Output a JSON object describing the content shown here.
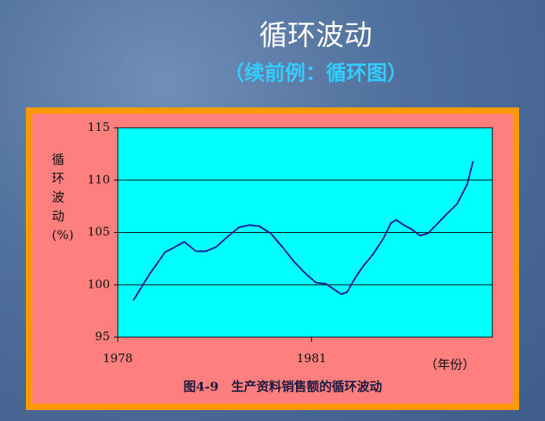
{
  "slide": {
    "title": "循环波动",
    "subtitle": "（续前例：循环图）"
  },
  "chart_data": {
    "type": "line",
    "y_label": "循环波动(%)",
    "x_label": "（年份）",
    "caption": "图4-9　生产资料销售额的循环波动",
    "xlim": [
      1978,
      1983.8
    ],
    "xticks": [
      1978,
      1981
    ],
    "ylim": [
      95,
      115
    ],
    "yticks": [
      95,
      100,
      105,
      110,
      115
    ],
    "grid": true,
    "series": [
      {
        "color": "#1a1a99",
        "x": [
          1978.24,
          1978.49,
          1978.73,
          1979.03,
          1979.21,
          1979.36,
          1979.52,
          1979.72,
          1979.88,
          1980.04,
          1980.19,
          1980.37,
          1980.55,
          1980.73,
          1980.92,
          1981.07,
          1981.22,
          1981.34,
          1981.46,
          1981.55,
          1981.67,
          1981.79,
          1981.95,
          1982.11,
          1982.23,
          1982.31,
          1982.43,
          1982.55,
          1982.68,
          1982.8,
          1982.96,
          1983.1,
          1983.25,
          1983.41,
          1983.5
        ],
        "values": [
          98.5,
          101.0,
          103.1,
          104.1,
          103.2,
          103.2,
          103.6,
          104.7,
          105.5,
          105.7,
          105.6,
          104.9,
          103.6,
          102.2,
          101.0,
          100.2,
          100.1,
          99.6,
          99.1,
          99.3,
          100.6,
          101.7,
          102.9,
          104.4,
          105.9,
          106.2,
          105.7,
          105.3,
          104.7,
          104.9,
          105.9,
          106.8,
          107.7,
          109.6,
          111.8
        ]
      }
    ]
  }
}
